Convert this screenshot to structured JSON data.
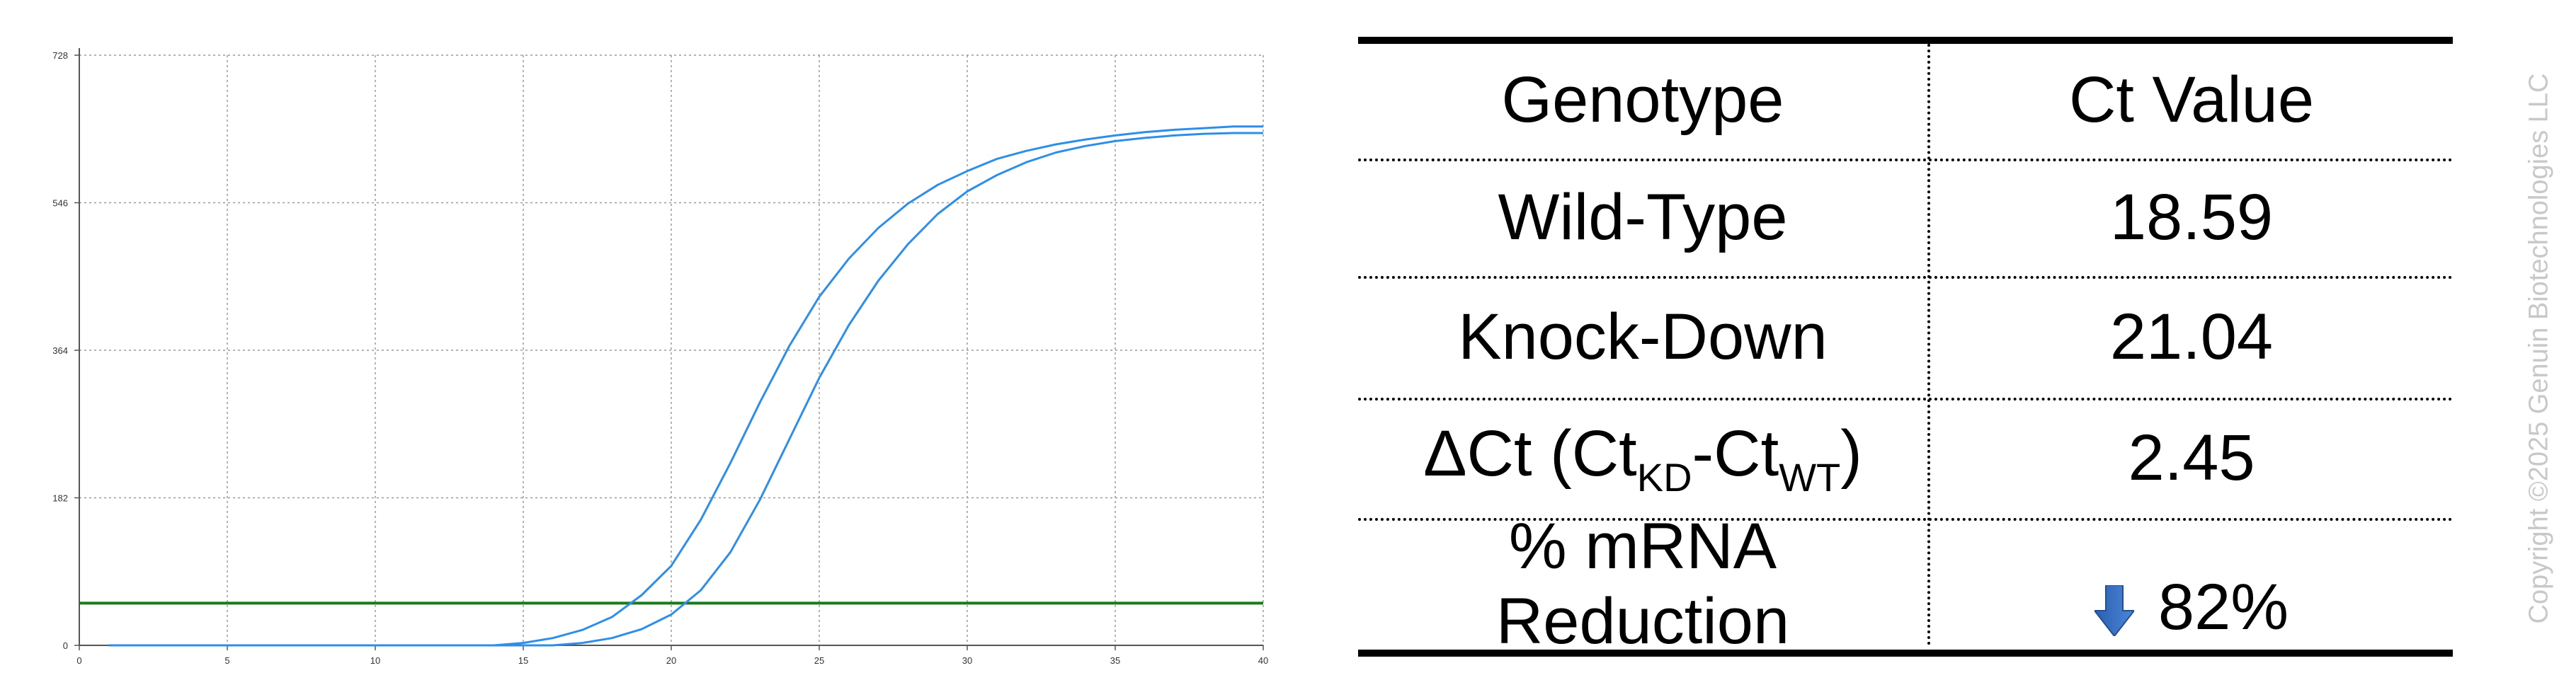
{
  "chart_data": {
    "type": "line",
    "title": "",
    "xlabel": "",
    "ylabel": "",
    "xlim": [
      0,
      40
    ],
    "ylim": [
      0,
      728
    ],
    "x_ticks": [
      0,
      5,
      10,
      15,
      20,
      25,
      30,
      35,
      40
    ],
    "y_ticks": [
      0,
      182,
      364,
      546,
      728
    ],
    "grid": true,
    "threshold": {
      "y": 52,
      "color": "#1a7a1a"
    },
    "series": [
      {
        "color": "#2e8ee8",
        "x": [
          1,
          14,
          15,
          16,
          17,
          18,
          19,
          20,
          21,
          22,
          23,
          24,
          25,
          26,
          27,
          28,
          29,
          30,
          31,
          32,
          33,
          34,
          35,
          36,
          37,
          38,
          39,
          40
        ],
        "y": [
          0,
          0,
          3,
          9,
          19,
          35,
          62,
          98,
          155,
          225,
          300,
          370,
          430,
          477,
          515,
          545,
          568,
          585,
          600,
          610,
          618,
          624,
          629,
          633,
          636,
          638,
          640,
          640
        ]
      },
      {
        "color": "#2e8ee8",
        "x": [
          1,
          16,
          17,
          18,
          19,
          20,
          21,
          22,
          23,
          24,
          25,
          26,
          27,
          28,
          29,
          30,
          31,
          32,
          33,
          34,
          35,
          36,
          37,
          38,
          39,
          40
        ],
        "y": [
          0,
          0,
          3,
          9,
          20,
          38,
          68,
          115,
          180,
          255,
          330,
          395,
          450,
          495,
          532,
          560,
          580,
          596,
          608,
          616,
          622,
          626,
          629,
          631,
          632,
          632
        ]
      }
    ]
  },
  "table": {
    "headers": [
      "Genotype",
      "Ct Value"
    ],
    "rows": {
      "wt": {
        "label": "Wild-Type",
        "value": "18.59"
      },
      "kd": {
        "label": "Knock-Down",
        "value": "21.04"
      },
      "dct": {
        "label_pre": "ΔCt (Ct",
        "sub1": "KD",
        "mid": "-Ct",
        "sub2": "WT",
        "post": ")",
        "value": "2.45"
      },
      "red": {
        "label_line1": "% mRNA",
        "label_line2": "Reduction",
        "value": "82%",
        "arrow_icon": "arrow-down-icon",
        "arrow_color": "#3a6fc4"
      }
    }
  },
  "copyright": "Copyright ©2025 Genuin Biotechnologies LLC"
}
